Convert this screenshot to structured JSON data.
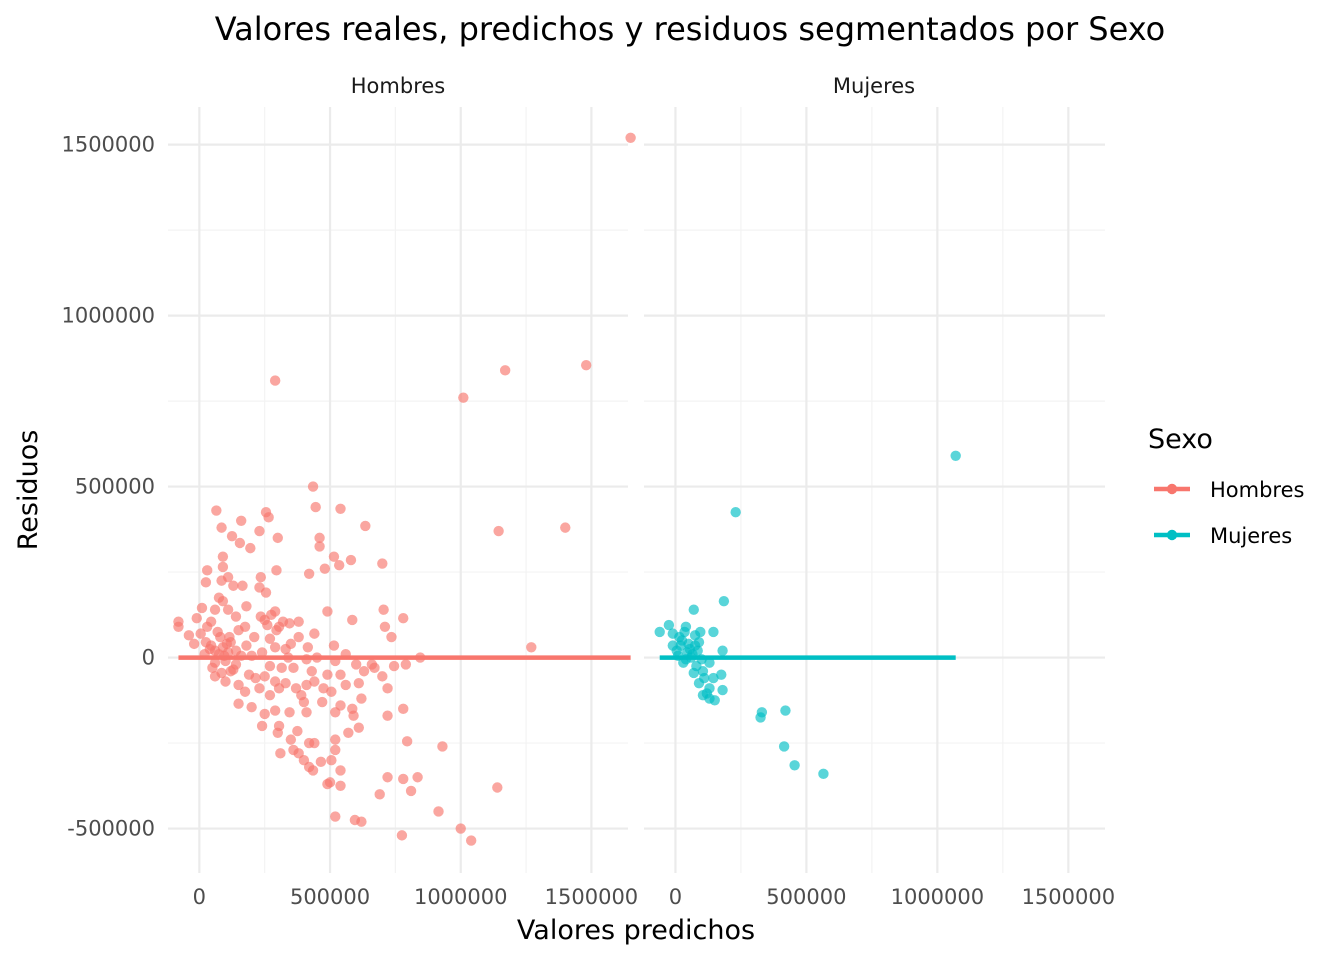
{
  "chart_data": {
    "type": "scatter",
    "title": "Valores reales, predichos y residuos segmentados por Sexo",
    "xlabel": "Valores predichos",
    "ylabel": "Residuos",
    "xlim": [
      -120000,
      1640000
    ],
    "ylim": [
      -630000,
      1610000
    ],
    "x_ticks": [
      0,
      500000,
      1000000,
      1500000
    ],
    "x_tick_labels": [
      "0",
      "500000",
      "1000000",
      "1500000"
    ],
    "y_ticks": [
      -500000,
      0,
      500000,
      1000000,
      1500000
    ],
    "y_tick_labels": [
      "-500000",
      "0",
      "500000",
      "1000000",
      "1500000"
    ],
    "grid": true,
    "legend": {
      "title": "Sexo",
      "placement": "right"
    },
    "facets": [
      {
        "label": "Hombres",
        "color": "#F8766D",
        "line": {
          "x": [
            -80000,
            1650000
          ],
          "y": [
            0,
            0
          ]
        }
      },
      {
        "label": "Mujeres",
        "color": "#00BFC4",
        "line": {
          "x": [
            -60000,
            1070000
          ],
          "y": [
            0,
            0
          ]
        }
      }
    ],
    "series": [
      {
        "name": "Hombres",
        "color": "#F8766D",
        "points": [
          [
            1650000,
            1520000
          ],
          [
            1480000,
            855000
          ],
          [
            1170000,
            840000
          ],
          [
            290000,
            810000
          ],
          [
            1010000,
            760000
          ],
          [
            435000,
            500000
          ],
          [
            540000,
            435000
          ],
          [
            65000,
            430000
          ],
          [
            255000,
            425000
          ],
          [
            265000,
            410000
          ],
          [
            160000,
            400000
          ],
          [
            635000,
            385000
          ],
          [
            85000,
            380000
          ],
          [
            1400000,
            380000
          ],
          [
            1145000,
            370000
          ],
          [
            125000,
            355000
          ],
          [
            230000,
            370000
          ],
          [
            300000,
            350000
          ],
          [
            445000,
            440000
          ],
          [
            460000,
            350000
          ],
          [
            460000,
            325000
          ],
          [
            155000,
            335000
          ],
          [
            195000,
            320000
          ],
          [
            90000,
            295000
          ],
          [
            515000,
            295000
          ],
          [
            580000,
            285000
          ],
          [
            535000,
            270000
          ],
          [
            480000,
            260000
          ],
          [
            295000,
            255000
          ],
          [
            90000,
            265000
          ],
          [
            30000,
            255000
          ],
          [
            700000,
            275000
          ],
          [
            420000,
            245000
          ],
          [
            235000,
            235000
          ],
          [
            110000,
            235000
          ],
          [
            85000,
            225000
          ],
          [
            25000,
            220000
          ],
          [
            130000,
            210000
          ],
          [
            165000,
            210000
          ],
          [
            230000,
            205000
          ],
          [
            255000,
            190000
          ],
          [
            75000,
            175000
          ],
          [
            90000,
            165000
          ],
          [
            180000,
            150000
          ],
          [
            110000,
            140000
          ],
          [
            10000,
            145000
          ],
          [
            60000,
            140000
          ],
          [
            290000,
            135000
          ],
          [
            490000,
            135000
          ],
          [
            705000,
            140000
          ],
          [
            140000,
            120000
          ],
          [
            235000,
            120000
          ],
          [
            275000,
            125000
          ],
          [
            250000,
            110000
          ],
          [
            585000,
            110000
          ],
          [
            780000,
            115000
          ],
          [
            -10000,
            115000
          ],
          [
            -80000,
            105000
          ],
          [
            45000,
            105000
          ],
          [
            320000,
            105000
          ],
          [
            380000,
            105000
          ],
          [
            345000,
            100000
          ],
          [
            -80000,
            90000
          ],
          [
            175000,
            90000
          ],
          [
            30000,
            90000
          ],
          [
            710000,
            90000
          ],
          [
            260000,
            95000
          ],
          [
            305000,
            90000
          ],
          [
            150000,
            80000
          ],
          [
            295000,
            80000
          ],
          [
            5000,
            70000
          ],
          [
            70000,
            75000
          ],
          [
            440000,
            70000
          ],
          [
            -40000,
            65000
          ],
          [
            210000,
            60000
          ],
          [
            380000,
            60000
          ],
          [
            735000,
            60000
          ],
          [
            115000,
            60000
          ],
          [
            270000,
            55000
          ],
          [
            350000,
            40000
          ],
          [
            -20000,
            40000
          ],
          [
            25000,
            45000
          ],
          [
            105000,
            40000
          ],
          [
            180000,
            35000
          ],
          [
            290000,
            30000
          ],
          [
            330000,
            25000
          ],
          [
            415000,
            30000
          ],
          [
            515000,
            35000
          ],
          [
            1270000,
            30000
          ],
          [
            40000,
            25000
          ],
          [
            140000,
            20000
          ],
          [
            240000,
            15000
          ],
          [
            560000,
            10000
          ],
          [
            845000,
            0
          ],
          [
            20000,
            10000
          ],
          [
            95000,
            5000
          ],
          [
            200000,
            5000
          ],
          [
            340000,
            0
          ],
          [
            410000,
            -5000
          ],
          [
            450000,
            0
          ],
          [
            520000,
            -10000
          ],
          [
            600000,
            -20000
          ],
          [
            660000,
            -20000
          ],
          [
            745000,
            -25000
          ],
          [
            790000,
            -20000
          ],
          [
            670000,
            -30000
          ],
          [
            60000,
            -15000
          ],
          [
            140000,
            -20000
          ],
          [
            270000,
            -25000
          ],
          [
            315000,
            -30000
          ],
          [
            360000,
            -30000
          ],
          [
            430000,
            -40000
          ],
          [
            490000,
            -50000
          ],
          [
            540000,
            -50000
          ],
          [
            630000,
            -40000
          ],
          [
            700000,
            -55000
          ],
          [
            120000,
            -40000
          ],
          [
            190000,
            -50000
          ],
          [
            250000,
            -55000
          ],
          [
            215000,
            -60000
          ],
          [
            290000,
            -70000
          ],
          [
            330000,
            -75000
          ],
          [
            370000,
            -90000
          ],
          [
            410000,
            -80000
          ],
          [
            440000,
            -70000
          ],
          [
            475000,
            -90000
          ],
          [
            560000,
            -80000
          ],
          [
            610000,
            -75000
          ],
          [
            720000,
            -90000
          ],
          [
            150000,
            -80000
          ],
          [
            230000,
            -90000
          ],
          [
            100000,
            -70000
          ],
          [
            60000,
            -55000
          ],
          [
            175000,
            -100000
          ],
          [
            270000,
            -110000
          ],
          [
            305000,
            -90000
          ],
          [
            390000,
            -110000
          ],
          [
            505000,
            -100000
          ],
          [
            620000,
            -120000
          ],
          [
            400000,
            -130000
          ],
          [
            470000,
            -130000
          ],
          [
            540000,
            -140000
          ],
          [
            720000,
            -170000
          ],
          [
            290000,
            -155000
          ],
          [
            250000,
            -165000
          ],
          [
            200000,
            -145000
          ],
          [
            150000,
            -135000
          ],
          [
            345000,
            -160000
          ],
          [
            410000,
            -160000
          ],
          [
            520000,
            -160000
          ],
          [
            585000,
            -150000
          ],
          [
            780000,
            -150000
          ],
          [
            590000,
            -170000
          ],
          [
            240000,
            -200000
          ],
          [
            305000,
            -200000
          ],
          [
            375000,
            -215000
          ],
          [
            570000,
            -220000
          ],
          [
            300000,
            -220000
          ],
          [
            420000,
            -250000
          ],
          [
            520000,
            -240000
          ],
          [
            610000,
            -205000
          ],
          [
            350000,
            -240000
          ],
          [
            360000,
            -270000
          ],
          [
            440000,
            -250000
          ],
          [
            520000,
            -270000
          ],
          [
            795000,
            -245000
          ],
          [
            310000,
            -280000
          ],
          [
            380000,
            -280000
          ],
          [
            400000,
            -300000
          ],
          [
            465000,
            -305000
          ],
          [
            505000,
            -300000
          ],
          [
            540000,
            -330000
          ],
          [
            420000,
            -320000
          ],
          [
            930000,
            -260000
          ],
          [
            435000,
            -330000
          ],
          [
            720000,
            -350000
          ],
          [
            780000,
            -355000
          ],
          [
            835000,
            -350000
          ],
          [
            500000,
            -365000
          ],
          [
            540000,
            -375000
          ],
          [
            490000,
            -370000
          ],
          [
            810000,
            -390000
          ],
          [
            690000,
            -400000
          ],
          [
            1140000,
            -380000
          ],
          [
            915000,
            -450000
          ],
          [
            520000,
            -465000
          ],
          [
            595000,
            -475000
          ],
          [
            620000,
            -480000
          ],
          [
            1000000,
            -500000
          ],
          [
            775000,
            -520000
          ],
          [
            1040000,
            -535000
          ],
          [
            80000,
            60000
          ],
          [
            90000,
            30000
          ],
          [
            100000,
            -10000
          ],
          [
            75000,
            10000
          ],
          [
            50000,
            -30000
          ],
          [
            110000,
            15000
          ],
          [
            130000,
            -35000
          ],
          [
            85000,
            -45000
          ],
          [
            45000,
            35000
          ],
          [
            160000,
            5000
          ],
          [
            60000,
            20000
          ],
          [
            120000,
            45000
          ]
        ]
      },
      {
        "name": "Mujeres",
        "color": "#00BFC4",
        "points": [
          [
            1070000,
            590000
          ],
          [
            230000,
            425000
          ],
          [
            185000,
            165000
          ],
          [
            70000,
            140000
          ],
          [
            -60000,
            75000
          ],
          [
            -10000,
            70000
          ],
          [
            -25000,
            95000
          ],
          [
            40000,
            90000
          ],
          [
            145000,
            75000
          ],
          [
            75000,
            65000
          ],
          [
            25000,
            50000
          ],
          [
            90000,
            45000
          ],
          [
            -10000,
            35000
          ],
          [
            5000,
            20000
          ],
          [
            55000,
            25000
          ],
          [
            180000,
            20000
          ],
          [
            10000,
            5000
          ],
          [
            60000,
            0
          ],
          [
            100000,
            -5000
          ],
          [
            130000,
            -15000
          ],
          [
            30000,
            -15000
          ],
          [
            80000,
            -25000
          ],
          [
            175000,
            -50000
          ],
          [
            105000,
            -40000
          ],
          [
            145000,
            -60000
          ],
          [
            90000,
            -75000
          ],
          [
            130000,
            -90000
          ],
          [
            180000,
            -95000
          ],
          [
            120000,
            -105000
          ],
          [
            130000,
            -120000
          ],
          [
            105000,
            -110000
          ],
          [
            150000,
            -125000
          ],
          [
            330000,
            -160000
          ],
          [
            325000,
            -175000
          ],
          [
            420000,
            -155000
          ],
          [
            415000,
            -260000
          ],
          [
            455000,
            -315000
          ],
          [
            565000,
            -340000
          ],
          [
            15000,
            60000
          ],
          [
            35000,
            75000
          ],
          [
            50000,
            40000
          ],
          [
            65000,
            10000
          ],
          [
            20000,
            35000
          ],
          [
            45000,
            15000
          ],
          [
            85000,
            20000
          ],
          [
            70000,
            -45000
          ],
          [
            110000,
            -60000
          ],
          [
            95000,
            75000
          ],
          [
            40000,
            -5000
          ],
          [
            75000,
            35000
          ]
        ]
      }
    ]
  }
}
